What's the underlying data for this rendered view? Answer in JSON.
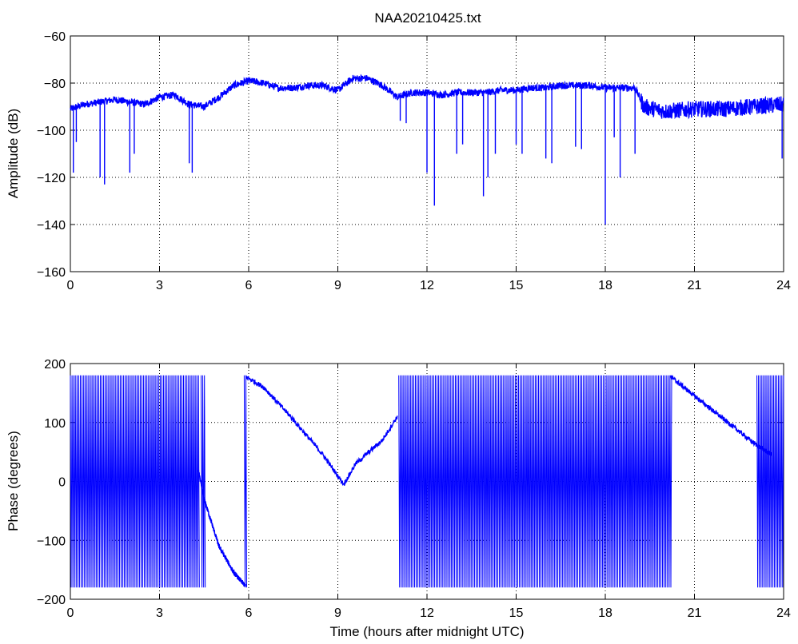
{
  "title": "NAA20210425.txt",
  "chart_data": [
    {
      "type": "line",
      "title": "NAA20210425.txt",
      "xlabel": "",
      "ylabel": "Amplitude (dB)",
      "xlim": [
        0,
        24
      ],
      "ylim": [
        -160,
        -60
      ],
      "xticks": [
        "0",
        "3",
        "6",
        "9",
        "12",
        "15",
        "18",
        "21",
        "24"
      ],
      "yticks": [
        "−60",
        "−80",
        "−100",
        "−120",
        "−140",
        "−160"
      ],
      "grid": true,
      "color": "#0000ff",
      "series": [
        {
          "baseline": {
            "x": [
              0,
              0.5,
              1,
              1.5,
              2,
              2.5,
              3,
              3.5,
              4,
              4.5,
              5,
              5.5,
              6,
              6.5,
              7,
              7.5,
              8,
              8.5,
              9,
              9.5,
              10,
              10.5,
              11,
              11.5,
              12,
              12.5,
              13,
              13.5,
              14,
              14.5,
              15,
              15.5,
              16,
              16.5,
              17,
              17.5,
              18,
              18.5,
              19,
              19.3,
              20,
              21,
              22,
              23,
              24
            ],
            "y": [
              -91,
              -89,
              -88,
              -87,
              -88,
              -89,
              -86,
              -85,
              -89,
              -90,
              -86,
              -81,
              -79,
              -80,
              -82,
              -82,
              -81,
              -81,
              -83,
              -78,
              -78,
              -81,
              -86,
              -84,
              -84,
              -85,
              -84,
              -84,
              -84,
              -83,
              -83,
              -82,
              -82,
              -81,
              -81,
              -81,
              -82,
              -82,
              -82,
              -90,
              -92,
              -91,
              -91,
              -90,
              -89
            ]
          },
          "dips": [
            {
              "x": 0.1,
              "y": -118
            },
            {
              "x": 0.2,
              "y": -105
            },
            {
              "x": 1.0,
              "y": -120
            },
            {
              "x": 1.15,
              "y": -123
            },
            {
              "x": 2.0,
              "y": -118
            },
            {
              "x": 2.15,
              "y": -110
            },
            {
              "x": 4.0,
              "y": -114
            },
            {
              "x": 4.1,
              "y": -118
            },
            {
              "x": 11.1,
              "y": -96
            },
            {
              "x": 11.3,
              "y": -97
            },
            {
              "x": 12.0,
              "y": -118
            },
            {
              "x": 12.25,
              "y": -132
            },
            {
              "x": 13.0,
              "y": -110
            },
            {
              "x": 13.2,
              "y": -106
            },
            {
              "x": 13.9,
              "y": -128
            },
            {
              "x": 14.05,
              "y": -120
            },
            {
              "x": 14.3,
              "y": -110
            },
            {
              "x": 15.0,
              "y": -106
            },
            {
              "x": 15.2,
              "y": -110
            },
            {
              "x": 16.0,
              "y": -112
            },
            {
              "x": 16.2,
              "y": -114
            },
            {
              "x": 17.0,
              "y": -107
            },
            {
              "x": 17.2,
              "y": -108
            },
            {
              "x": 18.0,
              "y": -140
            },
            {
              "x": 18.3,
              "y": -103
            },
            {
              "x": 18.5,
              "y": -120
            },
            {
              "x": 19.0,
              "y": -110
            },
            {
              "x": 23.95,
              "y": -112
            }
          ]
        }
      ]
    },
    {
      "type": "line",
      "title": "",
      "xlabel": "Time (hours after midnight UTC)",
      "ylabel": "Phase (degrees)",
      "xlim": [
        0,
        24
      ],
      "ylim": [
        -200,
        200
      ],
      "xticks": [
        "0",
        "3",
        "6",
        "9",
        "12",
        "15",
        "18",
        "21",
        "24"
      ],
      "yticks": [
        "200",
        "100",
        "0",
        "−100",
        "−200"
      ],
      "grid": true,
      "color": "#0000ff",
      "series": [
        {
          "wrapping_segments": [
            {
              "x": [
                0.0,
                4.35
              ]
            },
            {
              "x": [
                4.4,
                4.55
              ]
            },
            {
              "x": [
                5.85,
                5.95
              ]
            },
            {
              "x": [
                11.05,
                20.25
              ]
            },
            {
              "x": [
                23.1,
                24.0
              ]
            }
          ],
          "trend_segments": [
            {
              "x": [
                4.3,
                4.5,
                5.0,
                5.5,
                5.9
              ],
              "y": [
                20,
                -30,
                -110,
                -155,
                -178
              ]
            },
            {
              "x": [
                5.9,
                6.5,
                7.5,
                8.5,
                9.2,
                9.6,
                10.5,
                11.0
              ],
              "y": [
                178,
                160,
                105,
                45,
                -5,
                30,
                70,
                110
              ]
            },
            {
              "x": [
                20.2,
                21.0,
                22.0,
                23.0,
                23.6
              ],
              "y": [
                178,
                145,
                105,
                65,
                45
              ]
            }
          ]
        }
      ]
    }
  ]
}
